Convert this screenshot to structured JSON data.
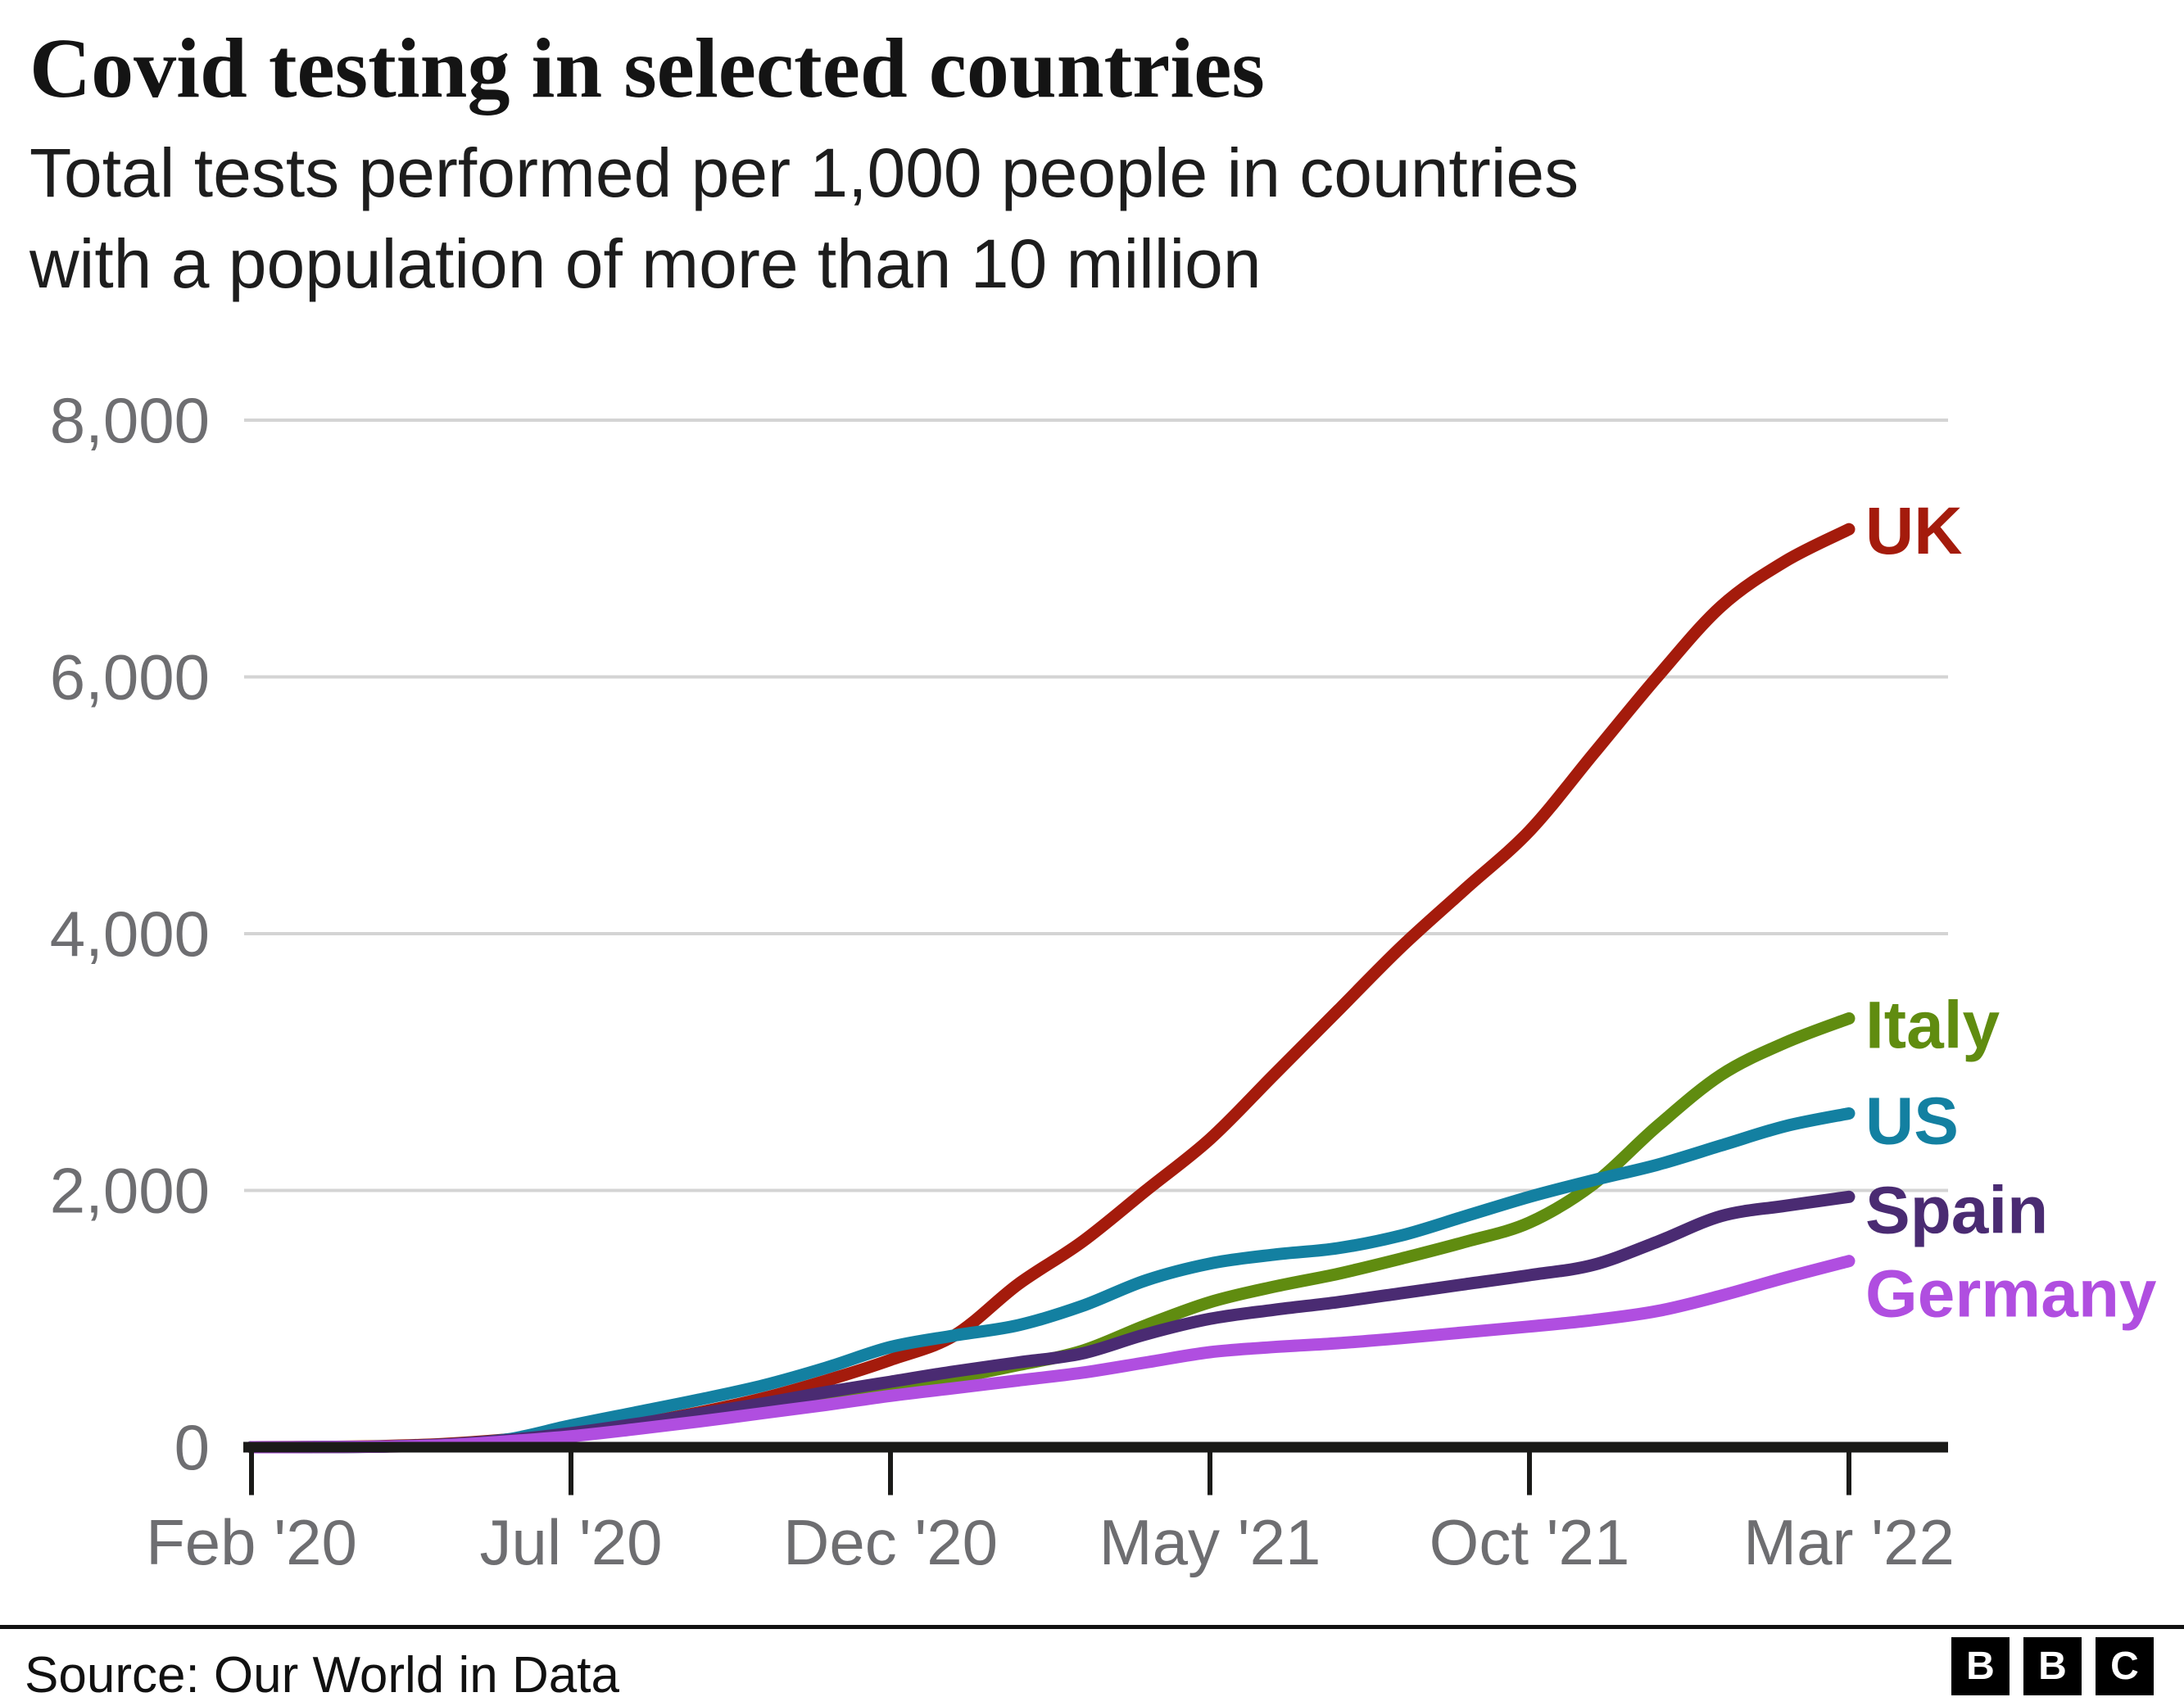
{
  "header": {
    "title": "Covid testing in selected countries",
    "subtitle_line1": "Total tests performed per 1,000 people in countries",
    "subtitle_line2": "with a population of more than 10 million"
  },
  "footer": {
    "source": "Source: Our World in Data",
    "logo_letters": [
      "B",
      "B",
      "C"
    ]
  },
  "theme": {
    "background": "#ffffff",
    "grid_color": "#d4d4d4",
    "axis_color": "#1a1a18",
    "tick_label_color": "#6e6e71",
    "title_color": "#141414",
    "subtitle_color": "#1d1d1d"
  },
  "chart_data": {
    "type": "line",
    "title": "Covid testing in selected countries",
    "subtitle": "Total tests performed per 1,000 people in countries with a population of more than 10 million",
    "xlabel": "",
    "ylabel": "Total tests performed per 1,000 people",
    "x_unit": "months since Feb 2020",
    "x_tick_months": [
      0,
      5,
      10,
      15,
      20,
      25
    ],
    "x_tick_labels": [
      "Feb '20",
      "Jul '20",
      "Dec '20",
      "May '21",
      "Oct '21",
      "Mar '22"
    ],
    "ylim": [
      0,
      8000
    ],
    "y_ticks": [
      0,
      2000,
      4000,
      6000,
      8000
    ],
    "y_tick_labels": [
      "0",
      "2,000",
      "4,000",
      "6,000",
      "8,000"
    ],
    "grid": "horizontal",
    "legend_position": "line-end-labels",
    "months": [
      0,
      1,
      2,
      3,
      4,
      5,
      6,
      7,
      8,
      9,
      10,
      11,
      12,
      13,
      14,
      15,
      16,
      17,
      18,
      19,
      20,
      21,
      22,
      23,
      24,
      25
    ],
    "series": [
      {
        "name": "UK",
        "color": "#a41b0c",
        "label_dy": 30,
        "values": [
          0,
          2,
          8,
          25,
          60,
          110,
          180,
          270,
          380,
          520,
          680,
          870,
          1270,
          1600,
          2000,
          2400,
          2900,
          3400,
          3900,
          4350,
          4800,
          5400,
          6000,
          6550,
          6900,
          7150
        ]
      },
      {
        "name": "Italy",
        "color": "#608c10",
        "label_dy": 36,
        "values": [
          0,
          1,
          4,
          15,
          40,
          95,
          160,
          240,
          320,
          390,
          450,
          540,
          640,
          750,
          950,
          1130,
          1250,
          1350,
          1470,
          1600,
          1750,
          2050,
          2500,
          2900,
          3150,
          3340
        ]
      },
      {
        "name": "US",
        "color": "#1380a1",
        "label_dy": 37,
        "values": [
          0,
          1,
          5,
          20,
          60,
          170,
          270,
          370,
          480,
          620,
          780,
          870,
          950,
          1100,
          1300,
          1430,
          1500,
          1550,
          1650,
          1800,
          1950,
          2080,
          2200,
          2350,
          2500,
          2600
        ]
      },
      {
        "name": "Spain",
        "color": "#4a2b72",
        "label_dy": 44,
        "values": [
          0,
          1,
          5,
          20,
          55,
          110,
          180,
          260,
          340,
          430,
          510,
          590,
          660,
          730,
          880,
          1000,
          1070,
          1130,
          1200,
          1270,
          1340,
          1420,
          1600,
          1800,
          1880,
          1950
        ]
      },
      {
        "name": "Germany",
        "color": "#b04ee0",
        "label_dy": 68,
        "values": [
          0,
          1,
          4,
          15,
          45,
          85,
          140,
          200,
          265,
          330,
          400,
          460,
          520,
          580,
          660,
          740,
          780,
          810,
          850,
          895,
          940,
          990,
          1060,
          1180,
          1320,
          1450
        ]
      }
    ]
  }
}
